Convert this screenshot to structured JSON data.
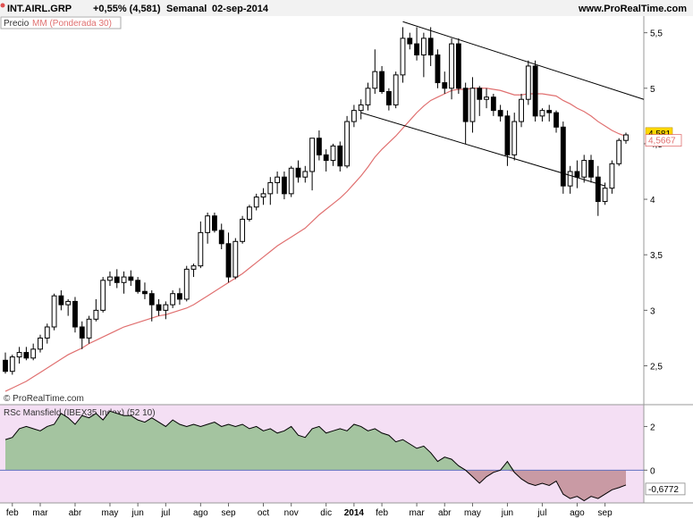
{
  "header": {
    "ticker": "INT.AIRL.GRP",
    "change": "+0,55% (4,581)",
    "period": "Semanal",
    "date": "02-sep-2014",
    "site": "www.ProRealTime.com"
  },
  "legend": {
    "price_label": "Precio",
    "ma_label": "MM (Ponderada 30)"
  },
  "watermark": "© ProRealTime.com",
  "colors": {
    "background": "#ffffff",
    "indicator_bg": "#f4dff4",
    "ma_line": "#e07070",
    "area_positive": "#a4c4a0",
    "area_negative": "#c99aa4",
    "last_price_badge": "#ffd700",
    "zero_line": "#6070c0"
  },
  "chart_data": [
    {
      "type": "candlestick",
      "title": "INT.AIRL.GRP",
      "ylim": [
        2.15,
        5.65
      ],
      "y_ticks": [
        "2,5",
        "3",
        "3,5",
        "4",
        "4,5",
        "5",
        "5,5"
      ],
      "y_tick_values": [
        2.5,
        3,
        3.5,
        4,
        4.5,
        5,
        5.5
      ],
      "last_price": "4,581",
      "last_price_value": 4.581,
      "ma_last": "4,5667",
      "ma_last_value": 4.5667,
      "candles": [
        [
          2.55,
          2.62,
          2.43,
          2.45
        ],
        [
          2.45,
          2.6,
          2.42,
          2.58
        ],
        [
          2.58,
          2.67,
          2.52,
          2.62
        ],
        [
          2.62,
          2.67,
          2.55,
          2.57
        ],
        [
          2.57,
          2.7,
          2.55,
          2.65
        ],
        [
          2.65,
          2.78,
          2.62,
          2.75
        ],
        [
          2.75,
          2.88,
          2.7,
          2.85
        ],
        [
          2.85,
          3.15,
          2.82,
          3.13
        ],
        [
          3.13,
          3.18,
          3.0,
          3.05
        ],
        [
          3.05,
          3.1,
          2.95,
          3.08
        ],
        [
          3.08,
          3.12,
          2.8,
          2.85
        ],
        [
          2.85,
          2.9,
          2.65,
          2.75
        ],
        [
          2.75,
          2.95,
          2.7,
          2.92
        ],
        [
          2.92,
          3.1,
          2.9,
          3.0
        ],
        [
          3.0,
          3.3,
          2.98,
          3.27
        ],
        [
          3.27,
          3.35,
          3.22,
          3.3
        ],
        [
          3.3,
          3.37,
          3.2,
          3.25
        ],
        [
          3.25,
          3.35,
          3.15,
          3.3
        ],
        [
          3.3,
          3.36,
          3.22,
          3.27
        ],
        [
          3.27,
          3.3,
          3.15,
          3.17
        ],
        [
          3.17,
          3.25,
          3.1,
          3.15
        ],
        [
          3.15,
          3.18,
          2.9,
          3.05
        ],
        [
          3.05,
          3.1,
          2.95,
          3.0
        ],
        [
          3.0,
          3.08,
          2.92,
          3.05
        ],
        [
          3.05,
          3.18,
          3.02,
          3.15
        ],
        [
          3.15,
          3.2,
          3.05,
          3.1
        ],
        [
          3.1,
          3.4,
          3.08,
          3.37
        ],
        [
          3.37,
          3.42,
          3.3,
          3.4
        ],
        [
          3.4,
          3.8,
          3.38,
          3.7
        ],
        [
          3.7,
          3.88,
          3.6,
          3.85
        ],
        [
          3.85,
          3.88,
          3.7,
          3.72
        ],
        [
          3.72,
          3.78,
          3.55,
          3.6
        ],
        [
          3.6,
          3.7,
          3.25,
          3.3
        ],
        [
          3.3,
          3.65,
          3.28,
          3.62
        ],
        [
          3.62,
          3.85,
          3.6,
          3.82
        ],
        [
          3.82,
          3.95,
          3.8,
          3.93
        ],
        [
          3.93,
          4.05,
          3.9,
          4.02
        ],
        [
          4.02,
          4.1,
          3.95,
          4.05
        ],
        [
          4.05,
          4.2,
          3.95,
          4.15
        ],
        [
          4.15,
          4.25,
          4.05,
          4.2
        ],
        [
          4.2,
          4.25,
          4.0,
          4.05
        ],
        [
          4.05,
          4.3,
          4.02,
          4.28
        ],
        [
          4.28,
          4.35,
          4.15,
          4.2
        ],
        [
          4.2,
          4.3,
          4.15,
          4.25
        ],
        [
          4.25,
          4.55,
          4.08,
          4.55
        ],
        [
          4.55,
          4.62,
          4.35,
          4.4
        ],
        [
          4.4,
          4.45,
          4.25,
          4.35
        ],
        [
          4.35,
          4.5,
          4.3,
          4.48
        ],
        [
          4.48,
          4.52,
          4.25,
          4.3
        ],
        [
          4.3,
          4.75,
          4.28,
          4.7
        ],
        [
          4.7,
          4.85,
          4.65,
          4.8
        ],
        [
          4.8,
          4.9,
          4.72,
          4.85
        ],
        [
          4.85,
          5.05,
          4.8,
          5.0
        ],
        [
          5.0,
          5.35,
          4.95,
          5.15
        ],
        [
          5.15,
          5.2,
          4.95,
          4.97
        ],
        [
          4.97,
          5.0,
          4.8,
          4.85
        ],
        [
          4.85,
          5.15,
          4.82,
          5.12
        ],
        [
          5.12,
          5.55,
          5.05,
          5.45
        ],
        [
          5.45,
          5.5,
          5.35,
          5.4
        ],
        [
          5.4,
          5.55,
          5.25,
          5.3
        ],
        [
          5.3,
          5.5,
          5.1,
          5.45
        ],
        [
          5.45,
          5.55,
          5.2,
          5.3
        ],
        [
          5.3,
          5.35,
          5.0,
          5.05
        ],
        [
          5.05,
          5.15,
          4.95,
          5.0
        ],
        [
          5.0,
          5.45,
          4.9,
          5.4
        ],
        [
          5.4,
          5.45,
          4.95,
          5.0
        ],
        [
          5.0,
          5.05,
          4.5,
          4.7
        ],
        [
          4.7,
          5.1,
          4.6,
          5.0
        ],
        [
          5.0,
          5.02,
          4.75,
          4.9
        ],
        [
          4.9,
          5.0,
          4.82,
          4.92
        ],
        [
          4.92,
          4.95,
          4.75,
          4.8
        ],
        [
          4.8,
          4.85,
          4.7,
          4.75
        ],
        [
          4.75,
          4.8,
          4.3,
          4.4
        ],
        [
          4.4,
          4.78,
          4.35,
          4.7
        ],
        [
          4.7,
          4.95,
          4.65,
          4.9
        ],
        [
          4.9,
          5.25,
          4.85,
          5.2
        ],
        [
          5.2,
          5.25,
          4.7,
          4.75
        ],
        [
          4.75,
          4.82,
          4.7,
          4.8
        ],
        [
          4.8,
          4.85,
          4.7,
          4.78
        ],
        [
          4.78,
          4.8,
          4.6,
          4.65
        ],
        [
          4.65,
          4.7,
          4.05,
          4.12
        ],
        [
          4.12,
          4.3,
          4.05,
          4.25
        ],
        [
          4.25,
          4.35,
          4.1,
          4.2
        ],
        [
          4.2,
          4.4,
          4.15,
          4.35
        ],
        [
          4.35,
          4.4,
          4.15,
          4.2
        ],
        [
          4.2,
          4.3,
          3.85,
          3.98
        ],
        [
          3.98,
          4.15,
          3.95,
          4.1
        ],
        [
          4.1,
          4.35,
          4.05,
          4.32
        ],
        [
          4.32,
          4.55,
          4.3,
          4.53
        ],
        [
          4.53,
          4.6,
          4.5,
          4.58
        ]
      ],
      "ma_values": [
        2.27,
        2.3,
        2.33,
        2.36,
        2.4,
        2.44,
        2.48,
        2.52,
        2.56,
        2.6,
        2.63,
        2.66,
        2.7,
        2.73,
        2.76,
        2.79,
        2.82,
        2.85,
        2.87,
        2.89,
        2.91,
        2.93,
        2.95,
        2.96,
        2.98,
        3.0,
        3.02,
        3.05,
        3.09,
        3.13,
        3.17,
        3.21,
        3.25,
        3.29,
        3.33,
        3.38,
        3.43,
        3.48,
        3.53,
        3.58,
        3.62,
        3.66,
        3.7,
        3.74,
        3.8,
        3.86,
        3.91,
        3.96,
        4.01,
        4.07,
        4.14,
        4.21,
        4.29,
        4.38,
        4.45,
        4.51,
        4.57,
        4.64,
        4.71,
        4.78,
        4.84,
        4.89,
        4.92,
        4.95,
        4.98,
        4.99,
        4.99,
        5.0,
        5.0,
        5.0,
        4.99,
        4.98,
        4.96,
        4.94,
        4.94,
        4.95,
        4.95,
        4.95,
        4.94,
        4.93,
        4.89,
        4.86,
        4.82,
        4.79,
        4.75,
        4.7,
        4.66,
        4.62,
        4.59,
        4.567
      ],
      "trend_lines": [
        {
          "from_candle": 57,
          "from_y": 5.6,
          "to_candle": 89,
          "to_y": 4.9
        },
        {
          "from_candle": 51,
          "from_y": 4.78,
          "to_candle": 86,
          "to_y": 4.12
        }
      ],
      "x_labels": [
        "feb",
        "mar",
        "abr",
        "may",
        "jun",
        "jul",
        "ago",
        "sep",
        "oct",
        "nov",
        "dic",
        "2014",
        "feb",
        "mar",
        "abr",
        "may",
        "jun",
        "jul",
        "ago",
        "sep"
      ],
      "x_label_candles": [
        1,
        5,
        10,
        15,
        19,
        23,
        28,
        32,
        37,
        41,
        46,
        50,
        54,
        59,
        63,
        67,
        72,
        77,
        82,
        86
      ]
    },
    {
      "type": "area",
      "title": "RSc Mansfield (IBEX35 Index) (52 10)",
      "ylim": [
        -1.5,
        3.0
      ],
      "y_ticks": [
        "2",
        "0"
      ],
      "y_tick_values": [
        2,
        0
      ],
      "last_value": "-0,6772",
      "last_value_num": -0.6772,
      "values": [
        1.4,
        1.5,
        1.9,
        2.0,
        1.9,
        1.8,
        2.0,
        2.1,
        2.6,
        2.4,
        2.1,
        2.5,
        2.4,
        2.6,
        2.3,
        2.7,
        2.6,
        2.5,
        2.5,
        2.3,
        2.2,
        2.4,
        2.2,
        2.0,
        2.3,
        2.1,
        2.0,
        2.1,
        2.0,
        2.1,
        2.2,
        2.0,
        2.1,
        2.0,
        2.1,
        1.9,
        2.0,
        1.8,
        1.9,
        1.7,
        1.8,
        2.0,
        1.6,
        1.5,
        1.9,
        2.0,
        1.7,
        1.8,
        1.9,
        1.8,
        2.1,
        2.0,
        1.8,
        1.9,
        1.7,
        1.6,
        1.3,
        1.4,
        1.2,
        1.0,
        1.1,
        0.8,
        0.4,
        0.6,
        0.5,
        0.2,
        0.0,
        -0.3,
        -0.6,
        -0.3,
        -0.1,
        0.0,
        0.4,
        -0.1,
        -0.4,
        -0.6,
        -0.7,
        -0.6,
        -0.7,
        -0.5,
        -1.1,
        -1.3,
        -1.2,
        -1.4,
        -1.2,
        -1.3,
        -1.1,
        -0.9,
        -0.8,
        -0.68
      ]
    }
  ]
}
